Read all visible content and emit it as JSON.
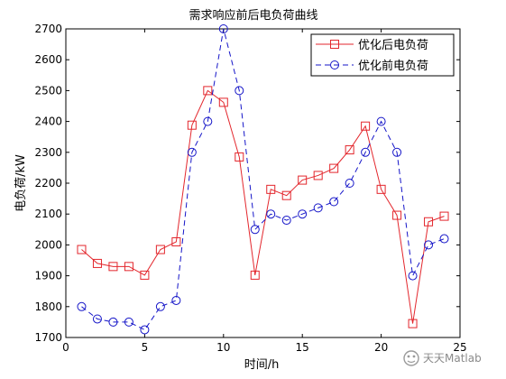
{
  "chart_data": {
    "type": "line",
    "title": "需求响应前后电负荷曲线",
    "xlabel": "时间/h",
    "ylabel": "电负荷/kW",
    "xlim": [
      0,
      25
    ],
    "ylim": [
      1700,
      2700
    ],
    "xticks": [
      0,
      5,
      10,
      15,
      20,
      25
    ],
    "yticks": [
      1700,
      1800,
      1900,
      2000,
      2100,
      2200,
      2300,
      2400,
      2500,
      2600,
      2700
    ],
    "legend_position": "top-right",
    "grid": false,
    "x": [
      1,
      2,
      3,
      4,
      5,
      6,
      7,
      8,
      9,
      10,
      11,
      12,
      13,
      14,
      15,
      16,
      17,
      18,
      19,
      20,
      21,
      22,
      23,
      24
    ],
    "series": [
      {
        "name": "优化后电负荷",
        "color": "#e3262c",
        "line_style": "solid",
        "marker": "square",
        "values": [
          1985,
          1940,
          1930,
          1930,
          1902,
          1985,
          2010,
          2388,
          2500,
          2462,
          2285,
          1902,
          2180,
          2160,
          2210,
          2225,
          2248,
          2308,
          2385,
          2180,
          2096,
          1745,
          2075,
          2093
        ]
      },
      {
        "name": "优化前电负荷",
        "color": "#1515c8",
        "line_style": "dashed",
        "marker": "circle",
        "values": [
          1800,
          1760,
          1750,
          1750,
          1725,
          1800,
          1820,
          2300,
          2400,
          2700,
          2500,
          2050,
          2100,
          2080,
          2100,
          2120,
          2140,
          2200,
          2300,
          2400,
          2300,
          1900,
          2000,
          2020
        ]
      }
    ]
  },
  "watermark": {
    "text": "天天Matlab",
    "icon": "wechat-official-account-icon"
  }
}
